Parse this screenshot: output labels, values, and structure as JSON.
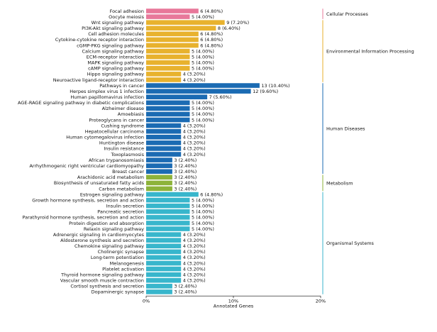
{
  "chart_data": {
    "type": "bar",
    "orientation": "horizontal",
    "xlabel": "Annotated Genes",
    "xlim": [
      0,
      20
    ],
    "xticks": [
      "0%",
      "10%",
      "20%"
    ],
    "grid": false,
    "categories": [
      {
        "name": "Cellular Processes",
        "color": "#e8789a",
        "terms": [
          {
            "label": "Focal adhesion",
            "count": 6,
            "value_label": "6 (4.80%)"
          },
          {
            "label": "Oocyte meiosis",
            "count": 5,
            "value_label": "5 (4.00%)"
          }
        ]
      },
      {
        "name": "Environmental Information Processing",
        "color": "#e8b22e",
        "terms": [
          {
            "label": "Wnt signaling pathway",
            "count": 9,
            "value_label": "9 (7.20%)"
          },
          {
            "label": "PI3K-Akt signaling pathway",
            "count": 8,
            "value_label": "8 (6.40%)"
          },
          {
            "label": "Cell adhesion molecules",
            "count": 6,
            "value_label": "6 (4.80%)"
          },
          {
            "label": "Cytokine-cytokine receptor interaction",
            "count": 6,
            "value_label": "6 (4.80%)"
          },
          {
            "label": "cGMP-PKG signaling pathway",
            "count": 6,
            "value_label": "6 (4.80%)"
          },
          {
            "label": "Calcium signaling pathway",
            "count": 5,
            "value_label": "5 (4.00%)"
          },
          {
            "label": "ECM-receptor interaction",
            "count": 5,
            "value_label": "5 (4.00%)"
          },
          {
            "label": "MAPK signaling pathway",
            "count": 5,
            "value_label": "5 (4.00%)"
          },
          {
            "label": "cAMP signaling pathway",
            "count": 5,
            "value_label": "5 (4.00%)"
          },
          {
            "label": "Hippo signaling pathway",
            "count": 4,
            "value_label": "4 (3.20%)"
          },
          {
            "label": "Neuroactive ligand-receptor interaction",
            "count": 4,
            "value_label": "4 (3.20%)"
          }
        ]
      },
      {
        "name": "Human Diseases",
        "color": "#1b6bb3",
        "terms": [
          {
            "label": "Pathways in cancer",
            "count": 13,
            "value_label": "13 (10.40%)"
          },
          {
            "label": "Herpes simplex virus 1 infection",
            "count": 12,
            "value_label": "12 (9.60%)"
          },
          {
            "label": "Human papillomavirus infection",
            "count": 7,
            "value_label": "7 (5.60%)"
          },
          {
            "label": "AGE-RAGE signaling pathway in diabetic complications",
            "count": 5,
            "value_label": "5 (4.00%)"
          },
          {
            "label": "Alzheimer disease",
            "count": 5,
            "value_label": "5 (4.00%)"
          },
          {
            "label": "Amoebiasis",
            "count": 5,
            "value_label": "5 (4.00%)"
          },
          {
            "label": "Proteoglycans in cancer",
            "count": 5,
            "value_label": "5 (4.00%)"
          },
          {
            "label": "Cushing syndrome",
            "count": 4,
            "value_label": "4 (3.20%)"
          },
          {
            "label": "Hepatocellular carcinoma",
            "count": 4,
            "value_label": "4 (3.20%)"
          },
          {
            "label": "Human cytomegalovirus infection",
            "count": 4,
            "value_label": "4 (3.20%)"
          },
          {
            "label": "Huntington disease",
            "count": 4,
            "value_label": "4 (3.20%)"
          },
          {
            "label": "Insulin resistance",
            "count": 4,
            "value_label": "4 (3.20%)"
          },
          {
            "label": "Toxoplasmosis",
            "count": 4,
            "value_label": "4 (3.20%)"
          },
          {
            "label": "African trypanosomiasis",
            "count": 3,
            "value_label": "3 (2.40%)"
          },
          {
            "label": "Arrhythmogenic right ventricular cardiomyopathy",
            "count": 3,
            "value_label": "3 (2.40%)"
          },
          {
            "label": "Breast cancer",
            "count": 3,
            "value_label": "3 (2.40%)"
          }
        ]
      },
      {
        "name": "Metabolism",
        "color": "#8db33a",
        "terms": [
          {
            "label": "Arachidonic acid metabolism",
            "count": 3,
            "value_label": "3 (2.40%)"
          },
          {
            "label": "Biosynthesis of unsaturated fatty acids",
            "count": 3,
            "value_label": "3 (2.40%)"
          },
          {
            "label": "Carbon metabolism",
            "count": 3,
            "value_label": "3 (2.40%)"
          }
        ]
      },
      {
        "name": "Organismal Systems",
        "color": "#38b6cc",
        "terms": [
          {
            "label": "Estrogen signaling pathway",
            "count": 6,
            "value_label": "6 (4.80%)"
          },
          {
            "label": "Growth hormone synthesis, secretion and action",
            "count": 5,
            "value_label": "5 (4.00%)"
          },
          {
            "label": "Insulin secretion",
            "count": 5,
            "value_label": "5 (4.00%)"
          },
          {
            "label": "Pancreatic secretion",
            "count": 5,
            "value_label": "5 (4.00%)"
          },
          {
            "label": "Parathyroid hormone synthesis, secretion and action",
            "count": 5,
            "value_label": "5 (4.00%)"
          },
          {
            "label": "Protein digestion and absorption",
            "count": 5,
            "value_label": "5 (4.00%)"
          },
          {
            "label": "Relaxin signaling pathway",
            "count": 5,
            "value_label": "5 (4.00%)"
          },
          {
            "label": "Adrenergic signaling in cardiomyocytes",
            "count": 4,
            "value_label": "4 (3.20%)"
          },
          {
            "label": "Aldosterone synthesis and secretion",
            "count": 4,
            "value_label": "4 (3.20%)"
          },
          {
            "label": "Chemokine signaling pathway",
            "count": 4,
            "value_label": "4 (3.20%)"
          },
          {
            "label": "Cholinergic synapse",
            "count": 4,
            "value_label": "4 (3.20%)"
          },
          {
            "label": "Long-term potentiation",
            "count": 4,
            "value_label": "4 (3.20%)"
          },
          {
            "label": "Melanogenesis",
            "count": 4,
            "value_label": "4 (3.20%)"
          },
          {
            "label": "Platelet activation",
            "count": 4,
            "value_label": "4 (3.20%)"
          },
          {
            "label": "Thyroid hormone signaling pathway",
            "count": 4,
            "value_label": "4 (3.20%)"
          },
          {
            "label": "Vascular smooth muscle contraction",
            "count": 4,
            "value_label": "4 (3.20%)"
          },
          {
            "label": "Cortisol synthesis and secretion",
            "count": 3,
            "value_label": "3 (2.40%)"
          },
          {
            "label": "Dopaminergic synapse",
            "count": 3,
            "value_label": "3 (2.40%)"
          }
        ]
      }
    ]
  }
}
